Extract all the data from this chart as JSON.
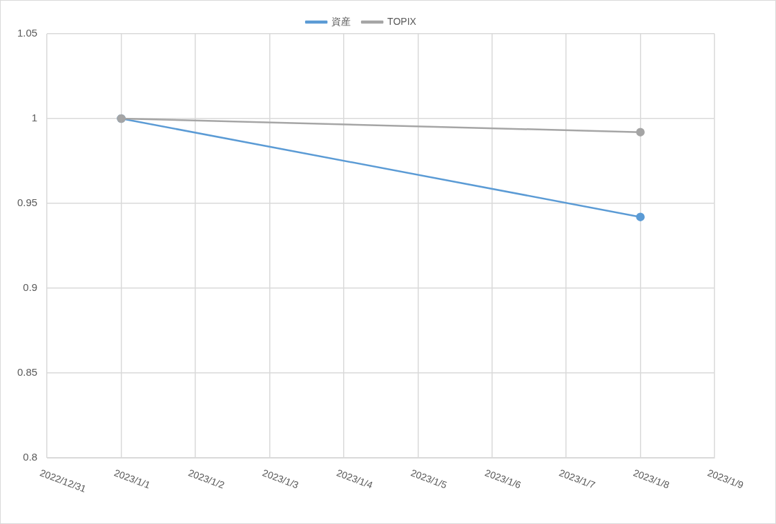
{
  "chart_data": {
    "type": "line",
    "x": [
      "2023-01-01",
      "2023-01-08"
    ],
    "series": [
      {
        "name": "資産",
        "color": "#5b9bd5",
        "values": [
          1,
          0.942
        ]
      },
      {
        "name": "TOPIX",
        "color": "#a5a5a5",
        "values": [
          1,
          0.992
        ]
      }
    ],
    "xlim": [
      "2022-12-31",
      "2023-01-09"
    ],
    "xticks": [
      {
        "value": "2022-12-31",
        "label": "2022/12/31"
      },
      {
        "value": "2023-01-01",
        "label": "2023/1/1"
      },
      {
        "value": "2023-01-02",
        "label": "2023/1/2"
      },
      {
        "value": "2023-01-03",
        "label": "2023/1/3"
      },
      {
        "value": "2023-01-04",
        "label": "2023/1/4"
      },
      {
        "value": "2023-01-05",
        "label": "2023/1/5"
      },
      {
        "value": "2023-01-06",
        "label": "2023/1/6"
      },
      {
        "value": "2023-01-07",
        "label": "2023/1/7"
      },
      {
        "value": "2023-01-08",
        "label": "2023/1/8"
      },
      {
        "value": "2023-01-09",
        "label": "2023/1/9"
      }
    ],
    "ylim": [
      0.8,
      1.05
    ],
    "yticks": [
      0.8,
      0.85,
      0.9,
      0.95,
      1,
      1.05
    ],
    "grid": true,
    "legend": "top",
    "marker": "circle",
    "line_style": "solid"
  }
}
